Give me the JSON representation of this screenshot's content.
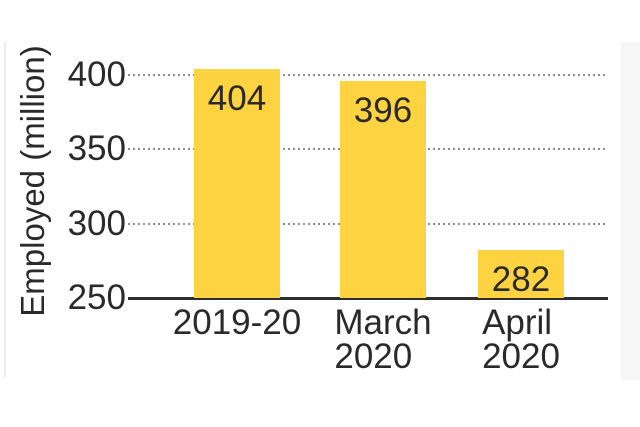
{
  "chart_data": {
    "type": "bar",
    "ylabel": "Employed (million)",
    "categories": [
      "2019-20",
      "March\n2020",
      "April\n2020"
    ],
    "values": [
      404,
      396,
      282
    ],
    "value_labels": [
      "404",
      "396",
      "282"
    ],
    "yticks": [
      250,
      300,
      350,
      400
    ],
    "ylim": [
      250,
      410
    ],
    "grid": "horizontal-dotted",
    "legend": "none",
    "bar_color": "#FDD342",
    "text_color": "#2A2A2A",
    "grid_color": "#8C8C8C",
    "axis_color": "#2E2E2E",
    "side_band_color": "#F6F6F6"
  }
}
